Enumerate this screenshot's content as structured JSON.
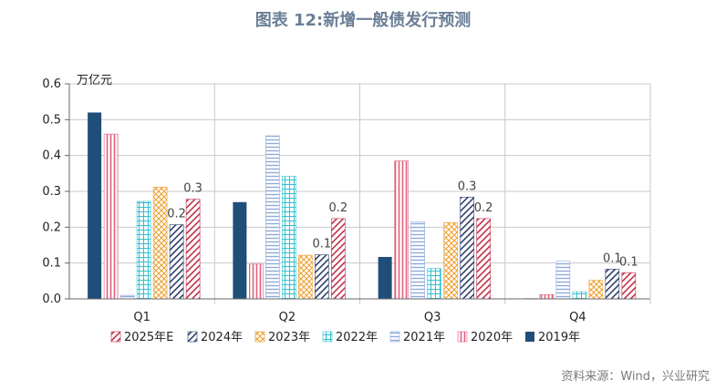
{
  "page": {
    "title": "图表 12:新增一般债发行预测",
    "source": "资料来源：Wind，兴业研究"
  },
  "chart_data": {
    "type": "bar",
    "title": "图表 12:新增一般债发行预测",
    "ylabel": "万亿元",
    "ylim": [
      0,
      0.6
    ],
    "yticks": [
      "0.0",
      "0.1",
      "0.2",
      "0.3",
      "0.4",
      "0.5",
      "0.6"
    ],
    "grid": true,
    "legend_position": "bottom",
    "categories": [
      "Q1",
      "Q2",
      "Q3",
      "Q4"
    ],
    "series": [
      {
        "name": "2019年",
        "values": [
          0.52,
          0.27,
          0.117,
          0.001
        ],
        "pattern": "solid",
        "color": "#1f4e79"
      },
      {
        "name": "2020年",
        "values": [
          0.46,
          0.097,
          0.385,
          0.012
        ],
        "pattern": "vertical",
        "color": "#e0607e"
      },
      {
        "name": "2021年",
        "values": [
          0.01,
          0.455,
          0.215,
          0.105
        ],
        "pattern": "horizontal",
        "color": "#8faadc"
      },
      {
        "name": "2022年",
        "values": [
          0.272,
          0.342,
          0.085,
          0.02
        ],
        "pattern": "grid",
        "color": "#33c0d0"
      },
      {
        "name": "2023年",
        "values": [
          0.312,
          0.122,
          0.213,
          0.052
        ],
        "pattern": "crosshatch",
        "color": "#f0a030"
      },
      {
        "name": "2024年",
        "values": [
          0.207,
          0.123,
          0.284,
          0.083
        ],
        "pattern": "diag-dark",
        "color": "#2f3f6a"
      },
      {
        "name": "2025年E",
        "values": [
          0.278,
          0.224,
          0.224,
          0.073
        ],
        "pattern": "diag-red",
        "color": "#c0304a"
      }
    ],
    "data_labels": [
      {
        "category": "Q1",
        "series": "2024年",
        "text": "0.2"
      },
      {
        "category": "Q1",
        "series": "2025年E",
        "text": "0.3"
      },
      {
        "category": "Q2",
        "series": "2024年",
        "text": "0.1"
      },
      {
        "category": "Q2",
        "series": "2025年E",
        "text": "0.2"
      },
      {
        "category": "Q3",
        "series": "2024年",
        "text": "0.3"
      },
      {
        "category": "Q3",
        "series": "2025年E",
        "text": "0.2"
      },
      {
        "category": "Q4",
        "series": "2024年",
        "text": "0.1"
      },
      {
        "category": "Q4",
        "series": "2025年E",
        "text": "0.1"
      }
    ],
    "legend_order": [
      "2025年E",
      "2024年",
      "2023年",
      "2022年",
      "2021年",
      "2020年",
      "2019年"
    ]
  }
}
